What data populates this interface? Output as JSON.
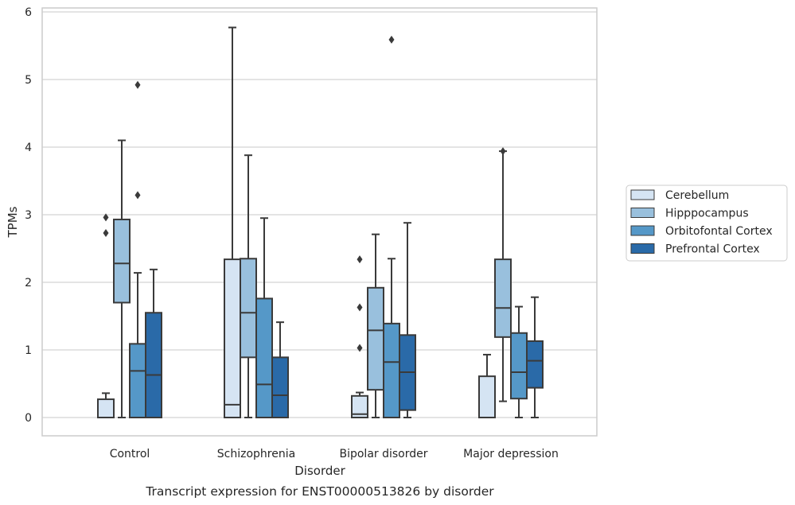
{
  "chart_data": {
    "type": "box",
    "title": "",
    "caption": "Transcript expression for ENST00000513826 by disorder",
    "xlabel": "Disorder",
    "ylabel": "TPMs",
    "ylim": [
      -0.27,
      6.07
    ],
    "yticks": [
      0,
      1,
      2,
      3,
      4,
      5,
      6
    ],
    "grid": "horizontal",
    "legend_position": "right",
    "categories": [
      "Control",
      "Schizophrenia",
      "Bipolar disorder",
      "Major depression"
    ],
    "series": [
      {
        "name": "Cerebellum",
        "color": "#d5e4f3",
        "boxes": [
          {
            "whisker_low": 0,
            "q1": 0,
            "median": 0,
            "q3": 0.27,
            "whisker_high": 0.36,
            "outliers": [
              2.73,
              2.96
            ]
          },
          {
            "whisker_low": 0,
            "q1": 0,
            "median": 0.19,
            "q3": 2.34,
            "whisker_high": 5.77,
            "outliers": []
          },
          {
            "whisker_low": 0,
            "q1": 0,
            "median": 0.05,
            "q3": 0.32,
            "whisker_high": 0.37,
            "outliers": [
              1.03,
              1.63,
              2.34
            ]
          },
          {
            "whisker_low": 0,
            "q1": 0,
            "median": 0,
            "q3": 0.61,
            "whisker_high": 0.93,
            "outliers": []
          }
        ]
      },
      {
        "name": "Hipppocampus",
        "color": "#99c0dd",
        "boxes": [
          {
            "whisker_low": 0,
            "q1": 1.7,
            "median": 2.28,
            "q3": 2.93,
            "whisker_high": 4.1,
            "outliers": []
          },
          {
            "whisker_low": 0,
            "q1": 0.89,
            "median": 1.55,
            "q3": 2.35,
            "whisker_high": 3.88,
            "outliers": []
          },
          {
            "whisker_low": 0,
            "q1": 0.41,
            "median": 1.29,
            "q3": 1.92,
            "whisker_high": 2.71,
            "outliers": []
          },
          {
            "whisker_low": 0.24,
            "q1": 1.19,
            "median": 1.62,
            "q3": 2.34,
            "whisker_high": 3.94,
            "outliers": [
              3.94
            ]
          }
        ]
      },
      {
        "name": "Orbitofontal Cortex",
        "color": "#5598c8",
        "boxes": [
          {
            "whisker_low": 0,
            "q1": 0,
            "median": 0.69,
            "q3": 1.09,
            "whisker_high": 2.14,
            "outliers": [
              3.29,
              4.92
            ]
          },
          {
            "whisker_low": 0,
            "q1": 0,
            "median": 0.49,
            "q3": 1.76,
            "whisker_high": 2.95,
            "outliers": []
          },
          {
            "whisker_low": 0,
            "q1": 0,
            "median": 0.82,
            "q3": 1.39,
            "whisker_high": 2.35,
            "outliers": [
              5.59
            ]
          },
          {
            "whisker_low": 0,
            "q1": 0.28,
            "median": 0.67,
            "q3": 1.25,
            "whisker_high": 1.64,
            "outliers": []
          }
        ]
      },
      {
        "name": "Prefrontal Cortex",
        "color": "#2a6aa8",
        "boxes": [
          {
            "whisker_low": 0,
            "q1": 0,
            "median": 0.63,
            "q3": 1.55,
            "whisker_high": 2.19,
            "outliers": []
          },
          {
            "whisker_low": 0,
            "q1": 0,
            "median": 0.33,
            "q3": 0.89,
            "whisker_high": 1.41,
            "outliers": []
          },
          {
            "whisker_low": 0,
            "q1": 0.11,
            "median": 0.67,
            "q3": 1.22,
            "whisker_high": 2.88,
            "outliers": []
          },
          {
            "whisker_low": 0,
            "q1": 0.44,
            "median": 0.84,
            "q3": 1.13,
            "whisker_high": 1.78,
            "outliers": []
          }
        ]
      }
    ]
  },
  "colors": {
    "axes_edge": "#cccccc",
    "grid": "#d4d4d4",
    "box_line": "#3a3a3a",
    "outlier": "#3a3a3a"
  }
}
